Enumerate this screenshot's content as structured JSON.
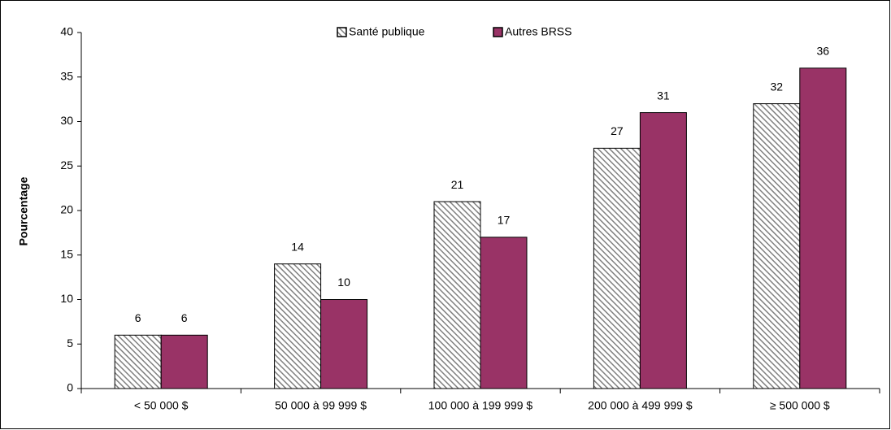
{
  "chart_data": {
    "type": "bar",
    "ylabel": "Pourcentage",
    "categories": [
      "< 50 000 $",
      "50 000 à 99 999 $",
      "100 000 à 199 999 $",
      "200 000 à 499 999 $",
      "≥ 500 000 $"
    ],
    "series": [
      {
        "name": "Santé publique",
        "color": "#808080",
        "pattern": "hatch",
        "values": [
          6,
          14,
          21,
          27,
          32
        ]
      },
      {
        "name": "Autres BRSS",
        "color": "#993366",
        "values": [
          6,
          10,
          17,
          31,
          36
        ]
      }
    ],
    "ylim": [
      0,
      40
    ],
    "yticks": [
      0,
      5,
      10,
      15,
      20,
      25,
      30,
      35,
      40
    ],
    "legend": "top"
  }
}
